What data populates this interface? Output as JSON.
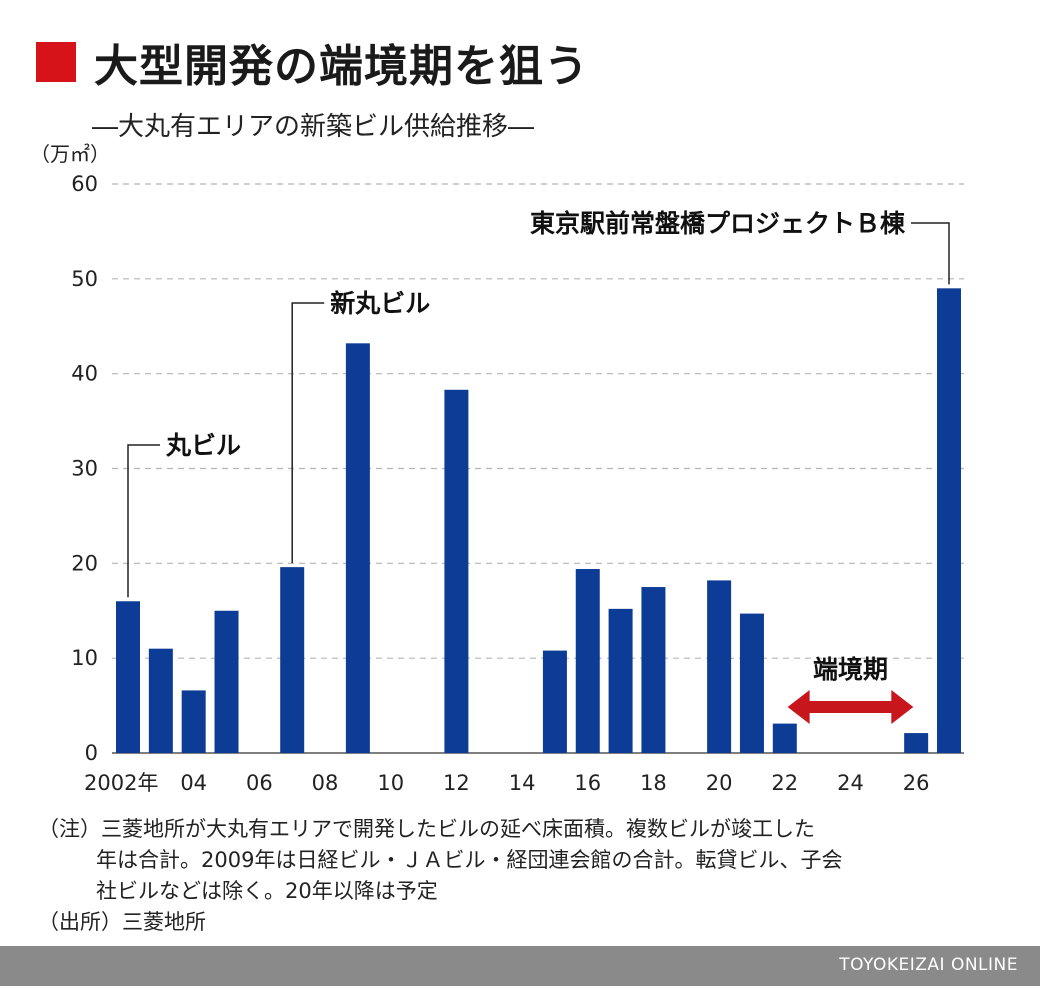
{
  "header": {
    "title": "大型開発の端境期を狙う",
    "subtitle": "―大丸有エリアの新築ビル供給推移―",
    "unit": "（万㎡）"
  },
  "chart_data": {
    "type": "bar",
    "title": "大型開発の端境期を狙う",
    "subtitle": "―大丸有エリアの新築ビル供給推移―",
    "ylabel": "（万㎡）",
    "ylim": [
      0,
      60
    ],
    "yticks": [
      0,
      10,
      20,
      30,
      40,
      50,
      60
    ],
    "grid": true,
    "bar_color": "#0d3c96",
    "x": [
      2002,
      2003,
      2004,
      2005,
      2006,
      2007,
      2008,
      2009,
      2010,
      2011,
      2012,
      2013,
      2014,
      2015,
      2016,
      2017,
      2018,
      2019,
      2020,
      2021,
      2022,
      2023,
      2024,
      2025,
      2026,
      2027
    ],
    "values": [
      16,
      11,
      6.6,
      15,
      0,
      19.6,
      0,
      43.2,
      0,
      0,
      38.3,
      0,
      0,
      10.8,
      19.4,
      15.2,
      17.5,
      0,
      18.2,
      14.7,
      3.1,
      0,
      0,
      0,
      2.1,
      49
    ],
    "xtick_labels": [
      {
        "year": 2002,
        "label": "2002年"
      },
      {
        "year": 2004,
        "label": "04"
      },
      {
        "year": 2006,
        "label": "06"
      },
      {
        "year": 2008,
        "label": "08"
      },
      {
        "year": 2010,
        "label": "10"
      },
      {
        "year": 2012,
        "label": "12"
      },
      {
        "year": 2014,
        "label": "14"
      },
      {
        "year": 2016,
        "label": "16"
      },
      {
        "year": 2018,
        "label": "18"
      },
      {
        "year": 2020,
        "label": "20"
      },
      {
        "year": 2022,
        "label": "22"
      },
      {
        "year": 2024,
        "label": "24"
      },
      {
        "year": 2026,
        "label": "26"
      }
    ],
    "annotations": [
      {
        "year": 2002,
        "text": "丸ビル",
        "side": "right"
      },
      {
        "year": 2007,
        "text": "新丸ビル",
        "side": "right"
      },
      {
        "year": 2027,
        "text": "東京駅前常盤橋プロジェクトＢ棟",
        "side": "left"
      }
    ],
    "range_annotation": {
      "from": 2023,
      "to": 2025,
      "text": "端境期",
      "color": "#c8161d"
    }
  },
  "notes": {
    "line1": "（注）三菱地所が大丸有エリアで開発したビルの延べ床面積。複数ビルが竣工した",
    "line2": "年は合計。2009年は日経ビル・ＪＡビル・経団連会館の合計。転貸ビル、子会",
    "line3": "社ビルなどは除く。20年以降は予定",
    "source": "（出所）三菱地所"
  },
  "footer": {
    "credit": "TOYOKEIZAI ONLINE"
  }
}
